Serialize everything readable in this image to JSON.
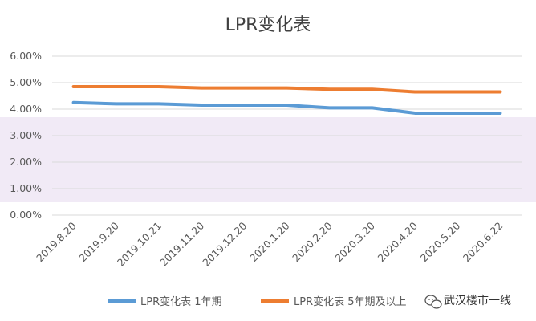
{
  "chart_data": {
    "type": "line",
    "title": "LPR变化表",
    "categories": [
      "2019.8.20",
      "2019.9.20",
      "2019.10.21",
      "2019.11.20",
      "2019.12.20",
      "2020.1.20",
      "2020.2.20",
      "2020.3.20",
      "2020.4.20",
      "2020.5.20",
      "2020.6.22"
    ],
    "series": [
      {
        "name": "LPR变化表 1年期",
        "color": "#5B9BD5",
        "values": [
          4.25,
          4.2,
          4.2,
          4.15,
          4.15,
          4.15,
          4.05,
          4.05,
          3.85,
          3.85,
          3.85
        ]
      },
      {
        "name": "LPR变化表 5年期及以上",
        "color": "#ED7D31",
        "values": [
          4.85,
          4.85,
          4.85,
          4.8,
          4.8,
          4.8,
          4.75,
          4.75,
          4.65,
          4.65,
          4.65
        ]
      }
    ],
    "y_ticks": [
      "0.00%",
      "1.00%",
      "2.00%",
      "3.00%",
      "4.00%",
      "5.00%",
      "6.00%"
    ],
    "ylim": [
      0,
      6
    ],
    "grid": true,
    "legend_position": "bottom"
  },
  "watermark": {
    "text": "武汉楼市一线"
  }
}
